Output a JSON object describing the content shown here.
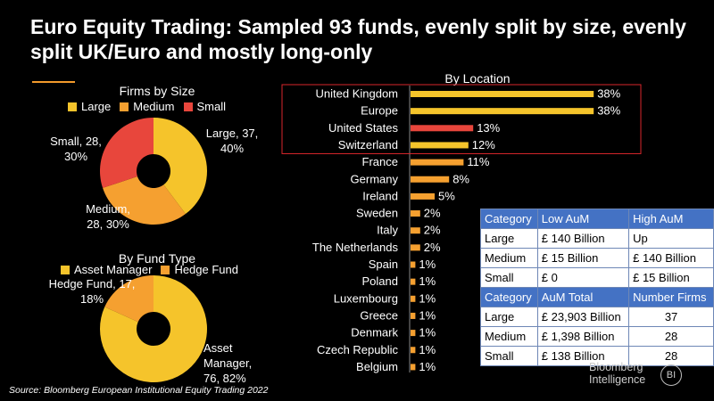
{
  "title": "Euro Equity Trading: Sampled 93 funds, evenly split by size, evenly split UK/Euro and mostly long-only",
  "source": "Source: Bloomberg European Institutional Equity Trading 2022",
  "brand": {
    "line1": "Bloomberg",
    "line2": "Intelligence",
    "badge": "BI"
  },
  "colors": {
    "large": "#f5c42b",
    "medium": "#f5a030",
    "small": "#e8463c",
    "asset_manager": "#f5c42b",
    "hedge_fund": "#f5a030",
    "bar_yellow": "#f5c42b",
    "bar_orange": "#f5a030",
    "bar_red": "#e8463c",
    "highlight_box": "#d9262b"
  },
  "chart_data": [
    {
      "type": "pie",
      "title": "Firms by Size",
      "legend_position": "top",
      "slices": [
        {
          "name": "Large",
          "value": 37,
          "label_line1": "Large, 37,",
          "label_line2": "40%"
        },
        {
          "name": "Medium",
          "value": 28,
          "label_line1": "Medium,",
          "label_line2": "28, 30%"
        },
        {
          "name": "Small",
          "value": 28,
          "label_line1": "Small, 28,",
          "label_line2": "30%"
        }
      ]
    },
    {
      "type": "pie",
      "title": "By Fund Type",
      "legend_position": "top",
      "slices": [
        {
          "name": "Asset Manager",
          "value": 76,
          "label_line1": "Asset",
          "label_line2": "Manager,",
          "label_line3": "76, 82%"
        },
        {
          "name": "Hedge Fund",
          "value": 17,
          "label_line1": "Hedge Fund, 17,",
          "label_line2": "18%"
        }
      ]
    },
    {
      "type": "bar",
      "orientation": "horizontal",
      "title": "By Location",
      "categories": [
        "United Kingdom",
        "Europe",
        "United States",
        "Switzerland",
        "France",
        "Germany",
        "Ireland",
        "Sweden",
        "Italy",
        "The Netherlands",
        "Spain",
        "Poland",
        "Luxembourg",
        "Greece",
        "Denmark",
        "Czech Republic",
        "Belgium"
      ],
      "values": [
        38,
        38,
        13,
        12,
        11,
        8,
        5,
        2,
        2,
        2,
        1,
        1,
        1,
        1,
        1,
        1,
        1
      ],
      "value_labels": [
        "38%",
        "38%",
        "13%",
        "12%",
        "11%",
        "8%",
        "5%",
        "2%",
        "2%",
        "2%",
        "1%",
        "1%",
        "1%",
        "1%",
        "1%",
        "1%",
        "1%"
      ],
      "bar_colors": [
        "yellow",
        "yellow",
        "red",
        "yellow",
        "orange",
        "orange",
        "orange",
        "orange",
        "orange",
        "orange",
        "orange",
        "orange",
        "orange",
        "orange",
        "orange",
        "orange",
        "orange"
      ],
      "highlighted_categories": [
        "United Kingdom",
        "Europe",
        "United States",
        "Switzerland"
      ],
      "xlim": [
        0,
        40
      ]
    }
  ],
  "size_table": {
    "header": [
      "Category",
      "Low AuM",
      "High AuM"
    ],
    "rows": [
      [
        "Large",
        "£ 140 Billion",
        "Up"
      ],
      [
        "Medium",
        "£ 15 Billion",
        "£ 140 Billion"
      ],
      [
        "Small",
        "£ 0",
        "£ 15 Billion"
      ]
    ]
  },
  "aum_table": {
    "header": [
      "Category",
      "AuM Total",
      "Number Firms"
    ],
    "rows": [
      [
        "Large",
        "£ 23,903 Billion",
        "37"
      ],
      [
        "Medium",
        "£ 1,398 Billion",
        "28"
      ],
      [
        "Small",
        "£ 138 Billion",
        "28"
      ]
    ]
  }
}
